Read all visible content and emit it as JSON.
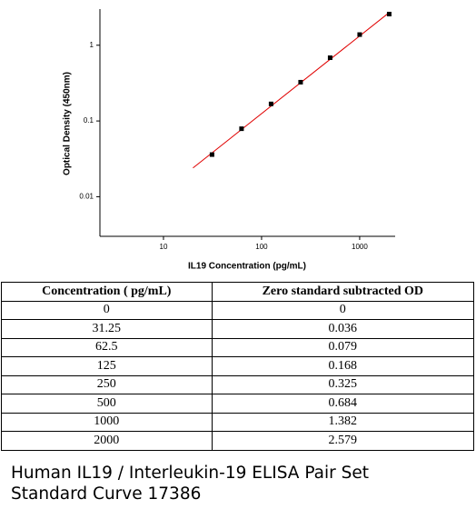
{
  "chart_data": {
    "type": "scatter",
    "x_label": "IL19 Concentration (pg/mL)",
    "y_label": "Optical Density (450nm)",
    "log_x": true,
    "log_y": true,
    "xlim": [
      2.25,
      2300
    ],
    "ylim": [
      0.003,
      3
    ],
    "xticks": [
      10,
      100,
      1000
    ],
    "yticks": [
      0.01,
      0.1,
      1
    ],
    "marker_color": "#000000",
    "fit_line": {
      "x": [
        20,
        2000
      ],
      "values": [
        0.024,
        2.7
      ],
      "color": "#e00000"
    }
  },
  "table": {
    "header": [
      "Concentration ( pg/mL)",
      "Zero standard subtracted OD"
    ],
    "rows": [
      [
        0,
        0
      ],
      [
        31.25,
        0.036
      ],
      [
        62.5,
        0.079
      ],
      [
        125,
        0.168
      ],
      [
        250,
        0.325
      ],
      [
        500,
        0.684
      ],
      [
        1000,
        1.382
      ],
      [
        2000,
        2.579
      ]
    ]
  },
  "caption": [
    "Human IL19 / Interleukin-19 ELISA Pair Set",
    "Standard Curve 17386"
  ]
}
